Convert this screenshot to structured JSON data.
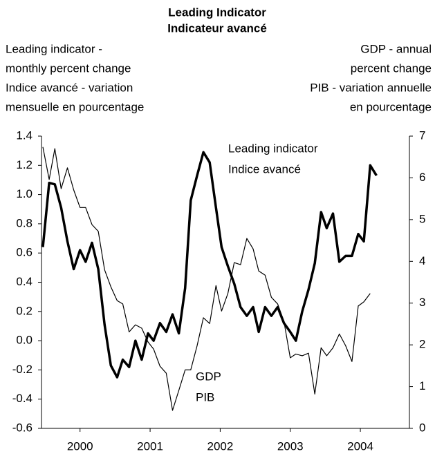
{
  "chart_data": {
    "type": "line",
    "title": [
      "Leading Indicator",
      "Indicateur avancé"
    ],
    "ylabel": [
      "Leading indicator -",
      "monthly percent change",
      "Indice avancé - variation",
      "mensuelle en pourcentage"
    ],
    "y2label": [
      "GDP - annual",
      "percent change",
      "PIB - variation annuelle",
      "en pourcentage"
    ],
    "annotations": [
      {
        "lines": [
          "Leading indicator",
          "Indice avancé"
        ]
      },
      {
        "lines": [
          "GDP",
          "PIB"
        ]
      }
    ],
    "xlim": [
      1999.95,
      2005.2
    ],
    "xticks": [
      {
        "value": 2000.5,
        "label": "2000"
      },
      {
        "value": 2001.5,
        "label": "2001"
      },
      {
        "value": 2002.5,
        "label": "2002"
      },
      {
        "value": 2003.5,
        "label": "2003"
      },
      {
        "value": 2004.5,
        "label": "2004"
      }
    ],
    "ylim": [
      -0.6,
      1.4
    ],
    "yticks": [
      {
        "value": -0.6,
        "label": "-0.6"
      },
      {
        "value": -0.4,
        "label": "-0.4"
      },
      {
        "value": -0.2,
        "label": "-0.2"
      },
      {
        "value": 0,
        "label": "0.0"
      },
      0.2,
      0.4,
      0.6,
      0.8,
      {
        "value": 1,
        "label": "1.0"
      },
      1.2,
      1.4
    ],
    "y2lim": [
      0,
      7
    ],
    "y2ticks": [
      0,
      1,
      2,
      3,
      4,
      5,
      6,
      7
    ],
    "series": [
      {
        "name": "Leading indicator",
        "color": "#000000",
        "width": 3.5,
        "x": [
          1999.97,
          2000.06,
          2000.14,
          2000.23,
          2000.32,
          2000.41,
          2000.5,
          2000.58,
          2000.67,
          2000.76,
          2000.85,
          2000.94,
          2001.03,
          2001.11,
          2001.2,
          2001.29,
          2001.38,
          2001.47,
          2001.55,
          2001.64,
          2001.73,
          2001.82,
          2001.91,
          2002.0,
          2002.08,
          2002.17,
          2002.26,
          2002.35,
          2002.44,
          2002.52,
          2002.61,
          2002.7,
          2002.79,
          2002.88,
          2002.97,
          2003.05,
          2003.14,
          2003.23,
          2003.32,
          2003.41,
          2003.5,
          2003.58,
          2003.67,
          2003.76,
          2003.85,
          2003.94,
          2004.02,
          2004.11,
          2004.2,
          2004.29,
          2004.38,
          2004.47,
          2004.55,
          2004.64,
          2004.73
        ],
        "values": [
          0.64,
          1.08,
          1.07,
          0.91,
          0.68,
          0.49,
          0.62,
          0.54,
          0.67,
          0.49,
          0.11,
          -0.17,
          -0.25,
          -0.13,
          -0.18,
          0.0,
          -0.13,
          0.05,
          0.0,
          0.12,
          0.06,
          0.18,
          0.05,
          0.36,
          0.96,
          1.13,
          1.29,
          1.22,
          0.91,
          0.64,
          0.51,
          0.39,
          0.23,
          0.17,
          0.23,
          0.06,
          0.23,
          0.17,
          0.23,
          0.12,
          0.06,
          0.0,
          0.2,
          0.35,
          0.53,
          0.88,
          0.77,
          0.87,
          0.54,
          0.58,
          0.58,
          0.73,
          0.68,
          1.2,
          1.13
        ]
      },
      {
        "name": "GDP",
        "color": "#000000",
        "width": 1.2,
        "axis": "y2",
        "x": [
          1999.97,
          2000.06,
          2000.14,
          2000.23,
          2000.32,
          2000.41,
          2000.5,
          2000.58,
          2000.67,
          2000.76,
          2000.85,
          2000.94,
          2001.03,
          2001.11,
          2001.2,
          2001.29,
          2001.38,
          2001.47,
          2001.55,
          2001.64,
          2001.73,
          2001.82,
          2001.91,
          2002.0,
          2002.08,
          2002.17,
          2002.26,
          2002.35,
          2002.44,
          2002.52,
          2002.61,
          2002.7,
          2002.79,
          2002.88,
          2002.97,
          2003.05,
          2003.14,
          2003.23,
          2003.32,
          2003.41,
          2003.5,
          2003.58,
          2003.67,
          2003.76,
          2003.85,
          2003.94,
          2004.02,
          2004.11,
          2004.2,
          2004.29,
          2004.38,
          2004.47,
          2004.55,
          2004.64
        ],
        "values": [
          6.74,
          5.96,
          6.7,
          5.74,
          6.24,
          5.71,
          5.29,
          5.29,
          4.88,
          4.72,
          3.8,
          3.39,
          3.06,
          2.98,
          2.31,
          2.48,
          2.4,
          2.07,
          1.9,
          1.49,
          1.32,
          0.43,
          0.91,
          1.4,
          1.4,
          1.98,
          2.65,
          2.51,
          3.42,
          2.81,
          3.23,
          3.97,
          3.92,
          4.55,
          4.3,
          3.77,
          3.67,
          3.14,
          2.98,
          2.56,
          1.69,
          1.78,
          1.74,
          1.8,
          0.82,
          1.93,
          1.74,
          1.93,
          2.26,
          1.98,
          1.6,
          2.93,
          3.03,
          3.23
        ]
      }
    ]
  }
}
